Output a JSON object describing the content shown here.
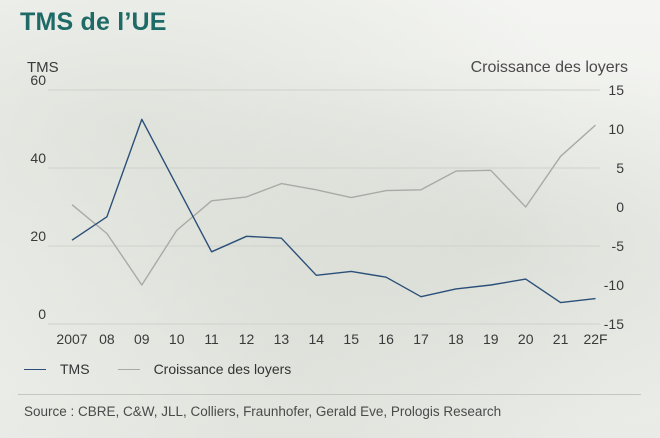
{
  "title": "TMS de l’UE",
  "source": "Source : CBRE, C&W, JLL, Colliers, Fraunhofer, Gerald Eve, Prologis Research",
  "colors": {
    "title": "#1e6a66",
    "tms": "#2b4f78",
    "loyers": "#a9aaa6"
  },
  "chart_data": {
    "type": "line",
    "title": "TMS de l’UE",
    "left_axis_label": "TMS",
    "right_axis_label": "Croissance des loyers",
    "categories": [
      "2007",
      "08",
      "09",
      "10",
      "11",
      "12",
      "13",
      "14",
      "15",
      "16",
      "17",
      "18",
      "19",
      "20",
      "21",
      "22F"
    ],
    "left_ylim": [
      0,
      60
    ],
    "left_ticks": [
      0,
      20,
      40,
      60
    ],
    "right_ylim": [
      -15,
      15
    ],
    "right_ticks": [
      -15,
      -10,
      -5,
      0,
      5,
      10,
      15
    ],
    "grid": true,
    "legend_position": "bottom-left",
    "series": [
      {
        "name": "TMS",
        "axis": "left",
        "values": [
          21.5,
          27.5,
          52.5,
          35.5,
          18.5,
          22.5,
          22.0,
          12.5,
          13.5,
          12.0,
          7.0,
          9.0,
          10.0,
          11.5,
          5.5,
          6.5
        ]
      },
      {
        "name": "Croissance des loyers",
        "axis": "right",
        "values": [
          0.3,
          -3.4,
          -10.0,
          -3.0,
          0.8,
          1.3,
          3.0,
          2.2,
          1.2,
          2.1,
          2.2,
          4.6,
          4.7,
          0.0,
          6.5,
          10.5
        ]
      }
    ]
  }
}
